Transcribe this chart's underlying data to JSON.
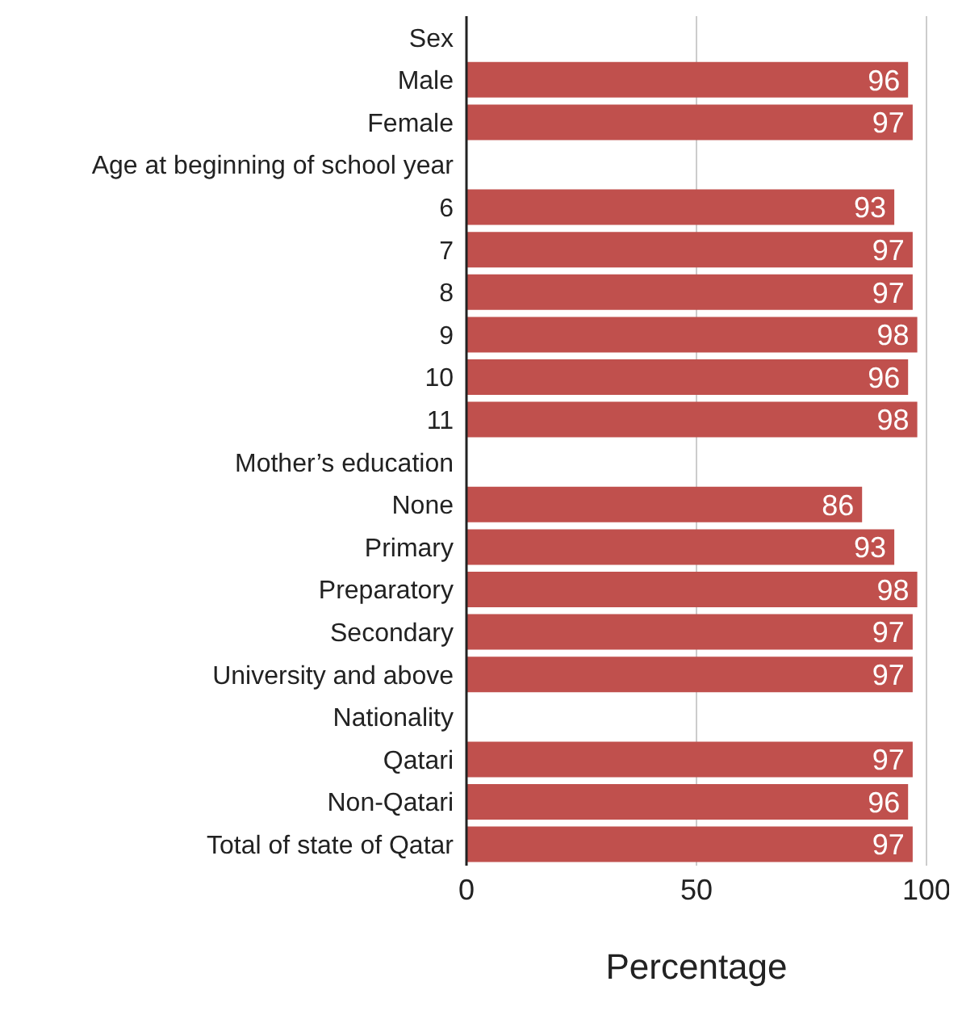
{
  "chart_data": {
    "type": "bar",
    "orientation": "horizontal",
    "xlabel": "Percentage",
    "categories": [
      "Sex",
      "Male",
      "Female",
      "Age at beginning of school year",
      "6",
      "7",
      "8",
      "9",
      "10",
      "11",
      "Mother’s education",
      "None",
      "Primary",
      "Preparatory",
      "Secondary",
      "University and above",
      "Nationality",
      "Qatari",
      "Non-Qatari",
      "Total of state of Qatar"
    ],
    "values": [
      null,
      96,
      97,
      null,
      93,
      97,
      97,
      98,
      96,
      98,
      null,
      86,
      93,
      98,
      97,
      97,
      null,
      97,
      96,
      97
    ],
    "color": "#c0504d",
    "xlim": [
      0,
      100
    ],
    "xticks": [
      0,
      50,
      100
    ],
    "grid": "x",
    "data_labels": true
  }
}
